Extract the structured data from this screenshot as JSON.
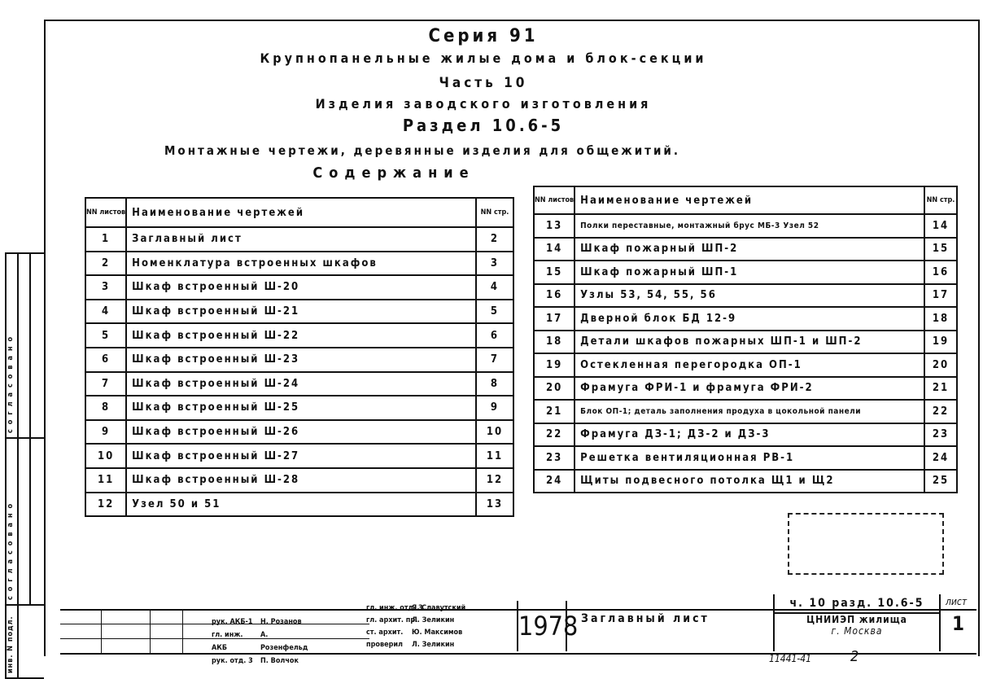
{
  "header": {
    "series": "Серия 91",
    "title": "Крупнопанельные жилые дома и блок-секции",
    "part": "Часть 10",
    "products": "Изделия заводского изготовления",
    "section": "Раздел 10.6-5",
    "subtitle": "Монтажные чертежи, деревянные изделия для общежитий.",
    "contents": "Содержание"
  },
  "table_headers": {
    "num": "NN листов",
    "name": "Наименование чертежей",
    "page": "NN стр."
  },
  "left_rows": [
    {
      "n": "1",
      "name": "Заглавный лист",
      "p": "2"
    },
    {
      "n": "2",
      "name": "Номенклатура встроенных шкафов",
      "p": "3"
    },
    {
      "n": "3",
      "name": "Шкаф встроенный  Ш-20",
      "p": "4"
    },
    {
      "n": "4",
      "name": "Шкаф встроенный  Ш-21",
      "p": "5"
    },
    {
      "n": "5",
      "name": "Шкаф встроенный  Ш-22",
      "p": "6"
    },
    {
      "n": "6",
      "name": "Шкаф встроенный  Ш-23",
      "p": "7"
    },
    {
      "n": "7",
      "name": "Шкаф встроенный  Ш-24",
      "p": "8"
    },
    {
      "n": "8",
      "name": "Шкаф встроенный  Ш-25",
      "p": "9"
    },
    {
      "n": "9",
      "name": "Шкаф встроенный  Ш-26",
      "p": "10"
    },
    {
      "n": "10",
      "name": "Шкаф встроенный  Ш-27",
      "p": "11"
    },
    {
      "n": "11",
      "name": "Шкаф встроенный  Ш-28",
      "p": "12"
    },
    {
      "n": "12",
      "name": "Узел 50 и 51",
      "p": "13"
    }
  ],
  "right_rows": [
    {
      "n": "13",
      "name": "Полки переставные, монтажный брус МБ-3 Узел 52",
      "p": "14"
    },
    {
      "n": "14",
      "name": "Шкаф пожарный ШП-2",
      "p": "15"
    },
    {
      "n": "15",
      "name": "Шкаф пожарный ШП-1",
      "p": "16"
    },
    {
      "n": "16",
      "name": "Узлы 53, 54, 55, 56",
      "p": "17"
    },
    {
      "n": "17",
      "name": "Дверной блок БД 12-9",
      "p": "18"
    },
    {
      "n": "18",
      "name": "Детали шкафов пожарных ШП-1 и ШП-2",
      "p": "19"
    },
    {
      "n": "19",
      "name": "Остекленная перегородка ОП-1",
      "p": "20"
    },
    {
      "n": "20",
      "name": "Фрамуга ФРИ-1 и фрамуга ФРИ-2",
      "p": "21"
    },
    {
      "n": "21",
      "name": "Блок ОП-1; деталь заполнения продуха в цокольной панели",
      "p": "22"
    },
    {
      "n": "22",
      "name": "Фрамуга ДЗ-1; ДЗ-2 и ДЗ-3",
      "p": "23"
    },
    {
      "n": "23",
      "name": "Решетка вентиляционная РВ-1",
      "p": "24"
    },
    {
      "n": "24",
      "name": "Щиты подвесного потолка Щ1 и Щ2",
      "p": "25"
    }
  ],
  "stamp": {
    "roles": [
      "рук. АКБ-1",
      "гл. инж. АКБ",
      "рук. отд. 3"
    ],
    "names": [
      "Н. Розанов",
      "А. Розенфельд",
      "П. Волчок"
    ],
    "roles2": [
      "гл. инж. отд. 3",
      "гл. архит. пр.",
      "ст. архит.",
      "проверил"
    ],
    "names2": [
      "Я. Славутский",
      "Л. Зеликин",
      "Ю. Максимов",
      "Л. Зеликин"
    ],
    "year": "1978",
    "sheet_title": "Заглавный лист",
    "code": "ч. 10 разд. 10.6-5",
    "org": "ЦНИИЭП жилища",
    "city": "г. Москва",
    "sheet_label": "лист",
    "sheet_num": "1",
    "inv": "11441-41",
    "page": "2"
  },
  "side": {
    "agreed1": "согласовано",
    "agreed2": "согласовано",
    "inv_label": "инв. N подл."
  }
}
